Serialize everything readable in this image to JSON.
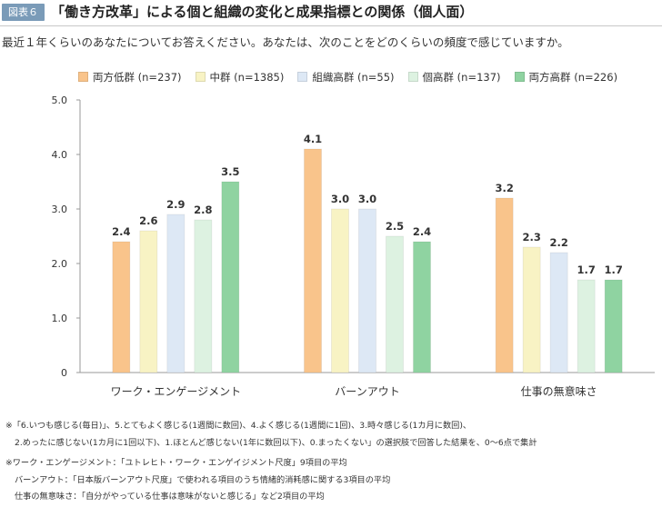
{
  "header": {
    "figure_label": "図表６",
    "title": "「働き方改革」による個と組織の変化と成果指標との関係（個人面）"
  },
  "question": "最近１年くらいのあなたについてお答えください。あなたは、次のことをどのくらいの頻度で感じていますか。",
  "chart_data": {
    "type": "bar",
    "categories": [
      "ワーク・エンゲージメント",
      "バーンアウト",
      "仕事の無意味さ"
    ],
    "series": [
      {
        "name": "両方低群 (n=237)",
        "color": "#f9c48b",
        "values": [
          2.4,
          4.1,
          3.2
        ]
      },
      {
        "name": "中群 (n=1385)",
        "color": "#f8f3c4",
        "values": [
          2.6,
          3.0,
          2.3
        ]
      },
      {
        "name": "組織高群 (n=55)",
        "color": "#dde8f5",
        "values": [
          2.9,
          3.0,
          2.2
        ]
      },
      {
        "name": "個高群 (n=137)",
        "color": "#ddf2e1",
        "values": [
          2.8,
          2.5,
          1.7
        ]
      },
      {
        "name": "両方高群 (n=226)",
        "color": "#8fd3a1",
        "values": [
          3.5,
          2.4,
          1.7
        ]
      }
    ],
    "ylim": [
      0,
      5
    ],
    "yticks": [
      0,
      1,
      2,
      3,
      4,
      5
    ],
    "ytick_labels": [
      "0",
      "1.0",
      "2.0",
      "3.0",
      "4.0",
      "5.0"
    ],
    "title": "",
    "xlabel": "",
    "ylabel": ""
  },
  "footnotes": {
    "line1": "※「6.いつも感じる(毎日)」、5.とてもよく感じる(1週間に数回)、4.よく感じる(1週間に1回)、3.時々感じる(1カ月に数回)、",
    "line2": "2.めったに感じない(1カ月に1回以下)、1.ほとんど感じない(1年に数回以下)、0.まったくない」の選択肢で回答した結果を、0～6点で集計",
    "line3": "※ワーク・エンゲージメント：「ユトレヒト・ワーク・エンゲイジメント尺度」9項目の平均",
    "line4": "バーンアウト：「日本版バーンアウト尺度」で使われる項目のうち情緒的消耗感に関する3項目の平均",
    "line5": "仕事の無意味さ：「自分がやっている仕事は意味がないと感じる」など2項目の平均"
  }
}
